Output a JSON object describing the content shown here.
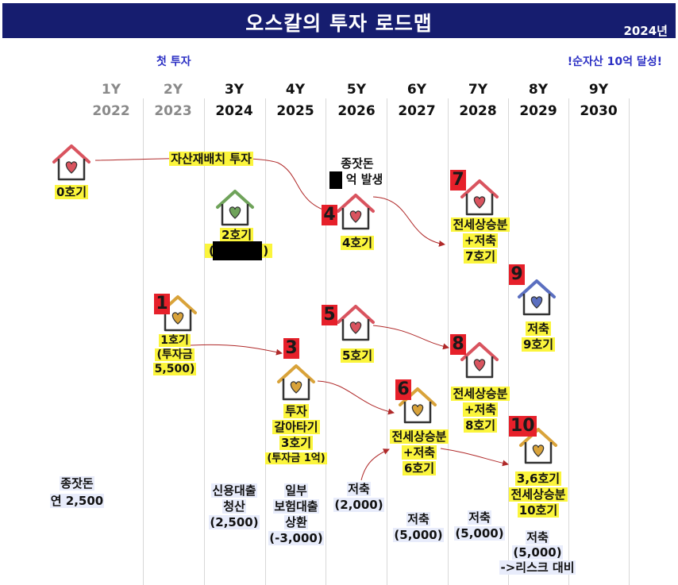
{
  "header": {
    "title": "오스칼의 투자 로드맵",
    "year": "2024년"
  },
  "notes": {
    "first_investment": "첫 투자",
    "goal": "!순자산 10억 달성!"
  },
  "timeline": [
    {
      "y": "1Y",
      "year": "2022",
      "color": "#8a8a8a"
    },
    {
      "y": "2Y",
      "year": "2023",
      "color": "#8a8a8a"
    },
    {
      "y": "3Y",
      "year": "2024",
      "color": "#111111"
    },
    {
      "y": "4Y",
      "year": "2025",
      "color": "#111111"
    },
    {
      "y": "5Y",
      "year": "2026",
      "color": "#111111"
    },
    {
      "y": "6Y",
      "year": "2027",
      "color": "#111111"
    },
    {
      "y": "7Y",
      "year": "2028",
      "color": "#111111"
    },
    {
      "y": "8Y",
      "year": "2029",
      "color": "#111111"
    },
    {
      "y": "9Y",
      "year": "2030",
      "color": "#111111"
    }
  ],
  "properties": {
    "house0": {
      "label": "0호기",
      "color": "#d9545f"
    },
    "house1": {
      "number": "1",
      "lines": [
        "1호기",
        "(투자금",
        "5,500)"
      ],
      "color": "#d9a33a"
    },
    "house2": {
      "label": "2호기",
      "paren": "(",
      "paren_close": ")",
      "color": "#6fa35a"
    },
    "house3": {
      "number": "3",
      "lines": [
        "투자",
        "갈아타기",
        "3호기"
      ],
      "sub": "(투자금 1억)",
      "color": "#d9a33a"
    },
    "house4": {
      "number": "4",
      "label": "4호기",
      "color": "#d9545f"
    },
    "house5": {
      "number": "5",
      "label": "5호기",
      "color": "#d9545f"
    },
    "house6": {
      "number": "6",
      "lines": [
        "전세상승분",
        "+저축",
        "6호기"
      ],
      "color": "#d9a33a"
    },
    "house7": {
      "number": "7",
      "lines": [
        "전세상승분",
        "+저축",
        "7호기"
      ],
      "color": "#d9545f"
    },
    "house8": {
      "number": "8",
      "lines": [
        "전세상승분",
        "+저축",
        "8호기"
      ],
      "color": "#d9545f"
    },
    "house9": {
      "number": "9",
      "lines": [
        "저축",
        "9호기"
      ],
      "color": "#5b6fc0"
    },
    "house10": {
      "number": "10",
      "lines": [
        "3,6호기",
        "전세상승분",
        "10호기"
      ],
      "color": "#d9a33a"
    }
  },
  "annotations": {
    "reallocation": "자산재배치 투자",
    "seed_event_line1": "종잣돈",
    "seed_event_line2": "억 발생"
  },
  "bottom_notes": {
    "seed": [
      "종잣돈",
      "연 2,500"
    ],
    "credit_loan": [
      "신용대출",
      "청산",
      "(2,500)"
    ],
    "insurance_loan": [
      "일부",
      "보험대출",
      "상환",
      "(-3,000)"
    ],
    "saving_2026": [
      "저축",
      "(2,000)"
    ],
    "saving_2027": [
      "저축",
      "(5,000)"
    ],
    "saving_2028": [
      "저축",
      "(5,000)"
    ],
    "saving_2029": [
      "저축",
      "(5,000)",
      "->리스크 대비"
    ]
  }
}
